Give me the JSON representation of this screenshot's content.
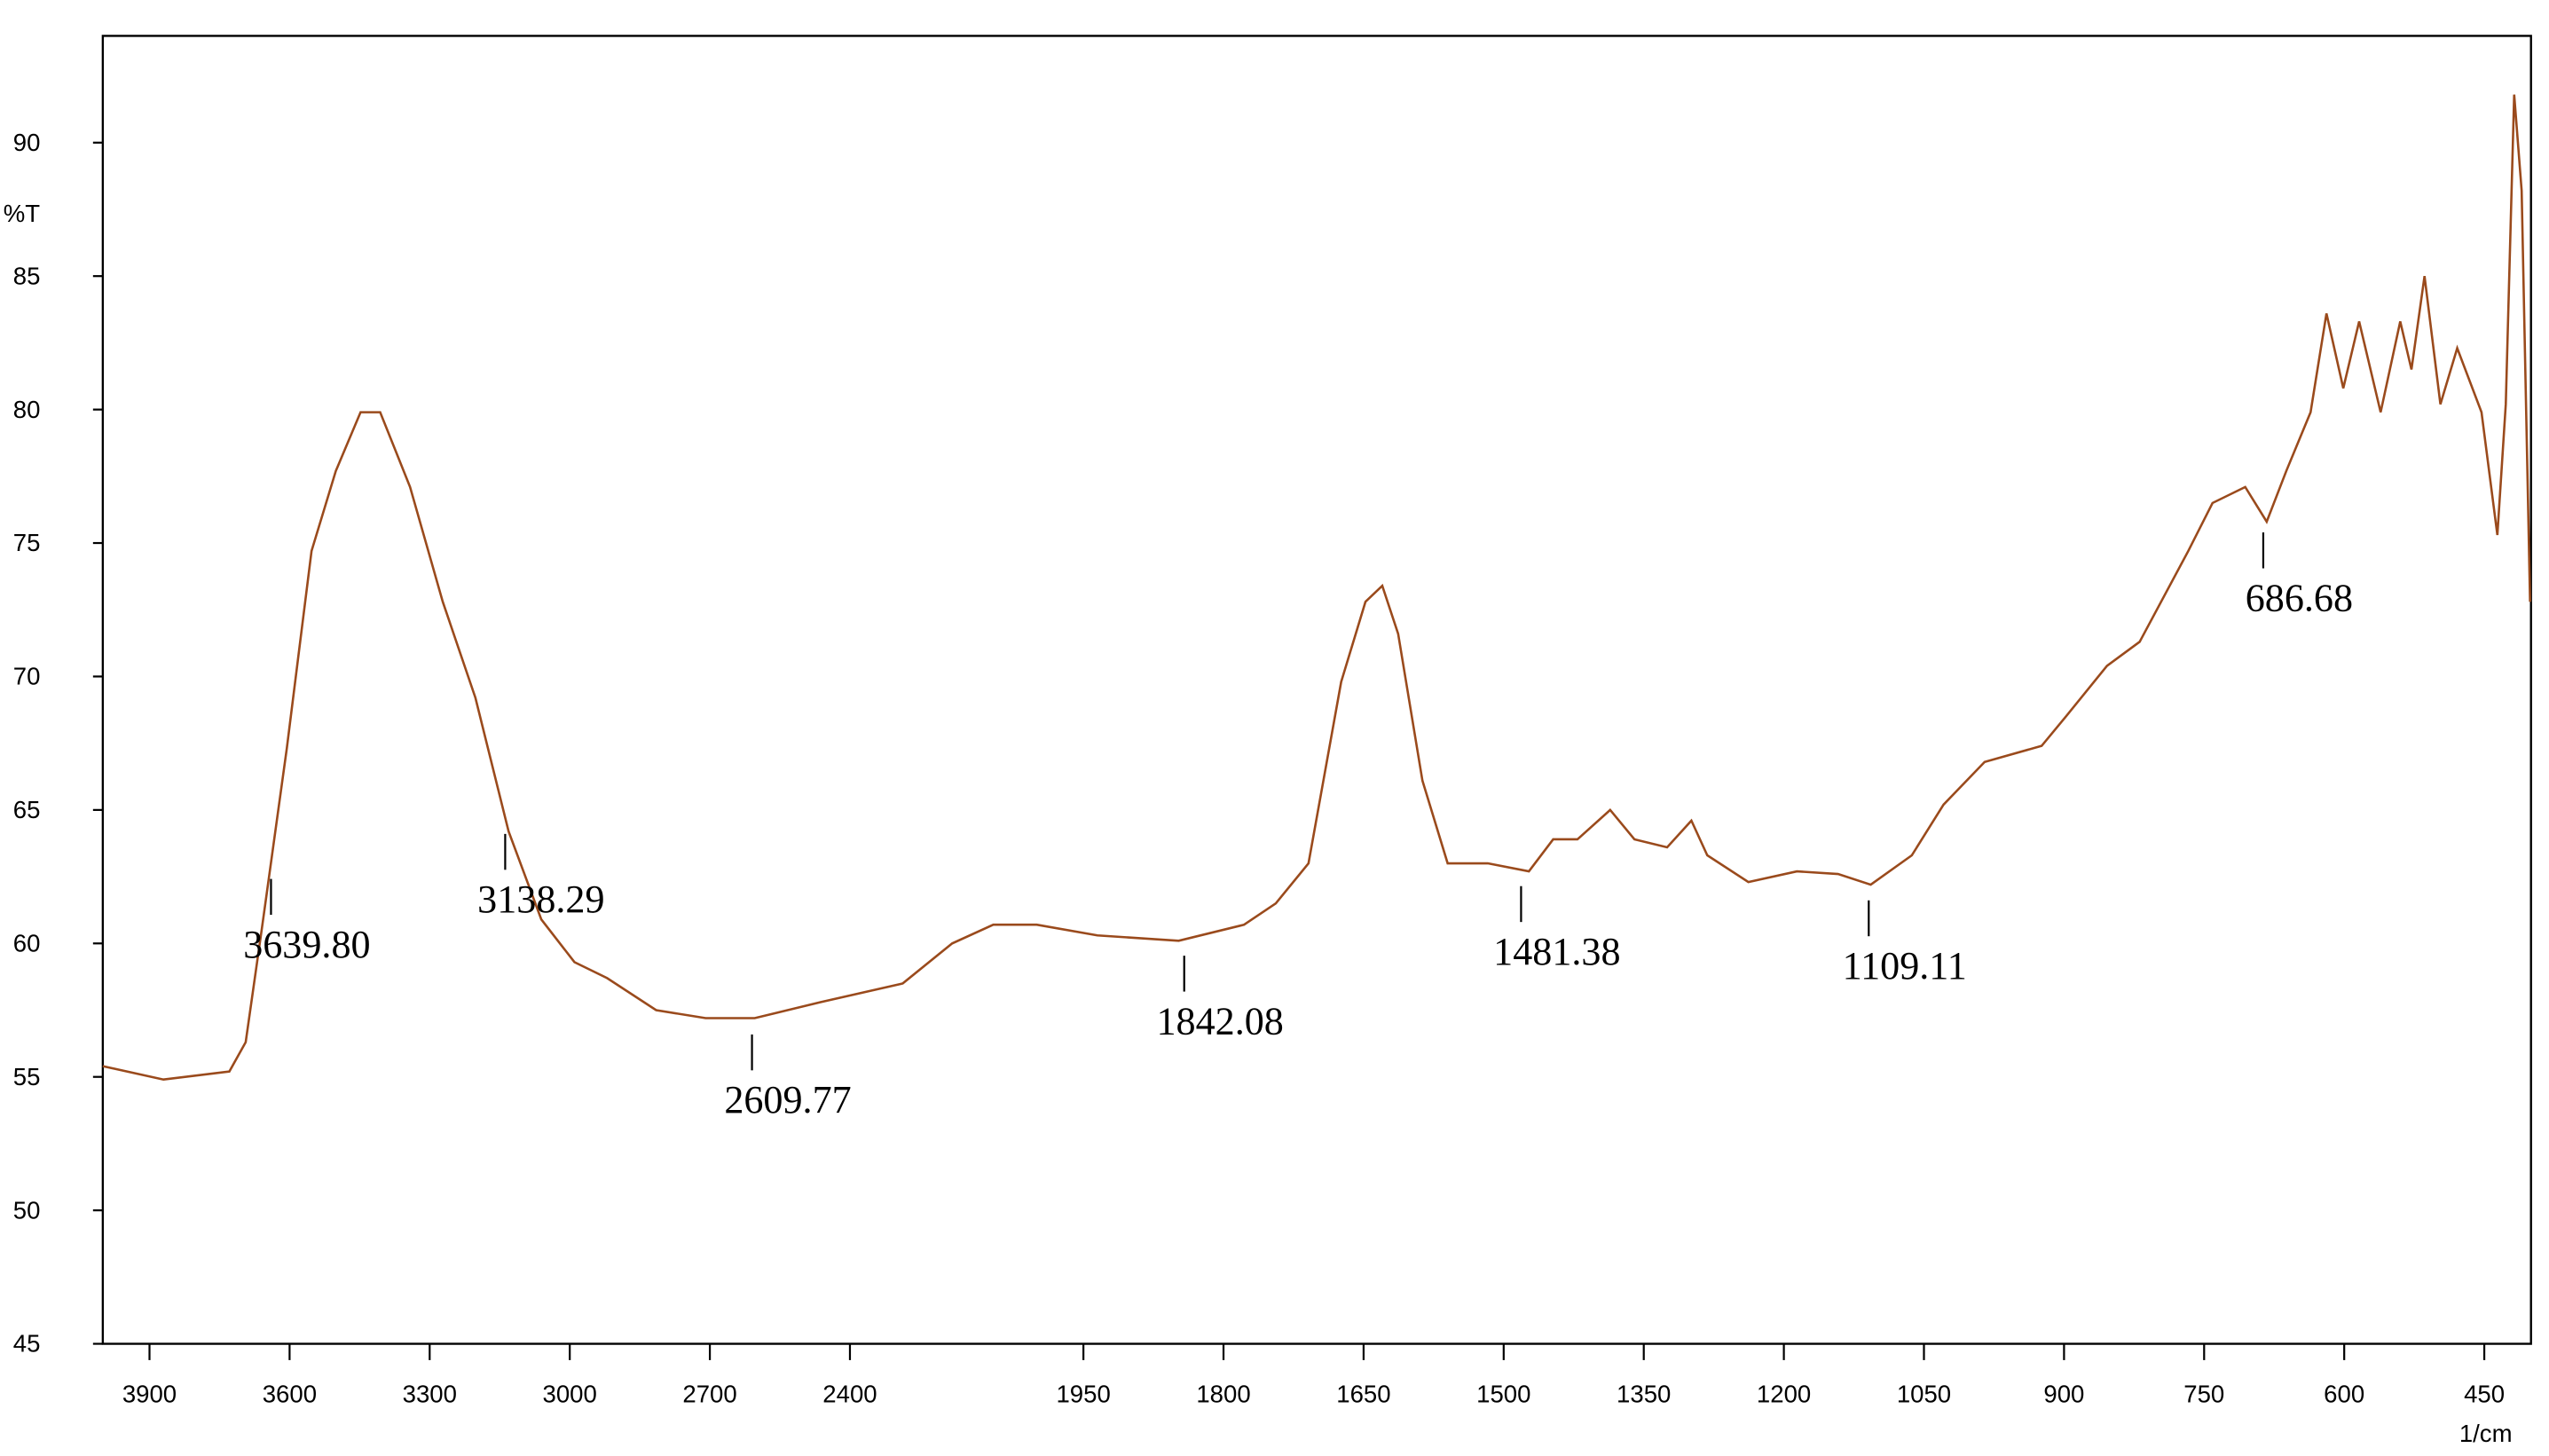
{
  "chart_data": {
    "type": "line",
    "y_label": "%T",
    "x_label": "1/cm",
    "xlim": [
      4000,
      400
    ],
    "x_break": 2000,
    "ylim": [
      45,
      94
    ],
    "xticks": [
      3900,
      3600,
      3300,
      3000,
      2700,
      2400,
      1950,
      1800,
      1650,
      1500,
      1350,
      1200,
      1050,
      900,
      750,
      600,
      450
    ],
    "yticks": [
      45,
      50,
      55,
      60,
      65,
      70,
      75,
      80,
      85,
      90
    ],
    "series": [
      {
        "color": "#9a4a1c",
        "x": [
          4000,
          3870,
          3729,
          3694,
          3659,
          3606,
          3553,
          3501,
          3448,
          3406,
          3342,
          3272,
          3202,
          3131,
          3061,
          2990,
          2920,
          2815,
          2709,
          2604,
          2463,
          2287,
          2181,
          2093,
          2000,
          1935,
          1848,
          1778,
          1744,
          1709,
          1674,
          1648,
          1630,
          1613,
          1587,
          1560,
          1517,
          1473,
          1447,
          1421,
          1386,
          1360,
          1325,
          1299,
          1282,
          1238,
          1186,
          1142,
          1107,
          1063,
          1029,
          985,
          924,
          898,
          854,
          819,
          767,
          741,
          706,
          683,
          662,
          636,
          619,
          601,
          584,
          561,
          540,
          528,
          514,
          497,
          479,
          453,
          436,
          427,
          418,
          410,
          401
        ],
        "values": [
          55.4,
          54.9,
          55.2,
          56.3,
          60.6,
          67.3,
          74.7,
          77.7,
          79.9,
          79.9,
          77.1,
          72.8,
          69.2,
          64.2,
          60.9,
          59.3,
          58.7,
          57.5,
          57.2,
          57.2,
          57.8,
          58.5,
          60,
          60.7,
          60.7,
          60.3,
          60.1,
          60.7,
          61.5,
          63,
          69.8,
          72.8,
          73.4,
          71.6,
          66.1,
          63,
          63,
          62.7,
          63.9,
          63.9,
          65,
          63.9,
          63.6,
          64.6,
          63.3,
          62.3,
          62.7,
          62.6,
          62.2,
          63.3,
          65.2,
          66.8,
          67.4,
          68.5,
          70.4,
          71.3,
          74.7,
          76.5,
          77.1,
          75.8,
          77.7,
          79.9,
          83.6,
          80.8,
          83.3,
          79.9,
          83.3,
          81.5,
          85,
          80.2,
          82.3,
          79.9,
          75.3,
          80.2,
          91.8,
          88.2,
          72.8
        ]
      }
    ],
    "annotations": [
      {
        "value": 3639.8,
        "label": "3639.80"
      },
      {
        "value": 3138.29,
        "label": "3138.29"
      },
      {
        "value": 2609.77,
        "label": "2609.77"
      },
      {
        "value": 1842.08,
        "label": "1842.08"
      },
      {
        "value": 1481.38,
        "label": "1481.38"
      },
      {
        "value": 1109.11,
        "label": "1109.11"
      },
      {
        "value": 686.68,
        "label": "686.68"
      }
    ]
  }
}
